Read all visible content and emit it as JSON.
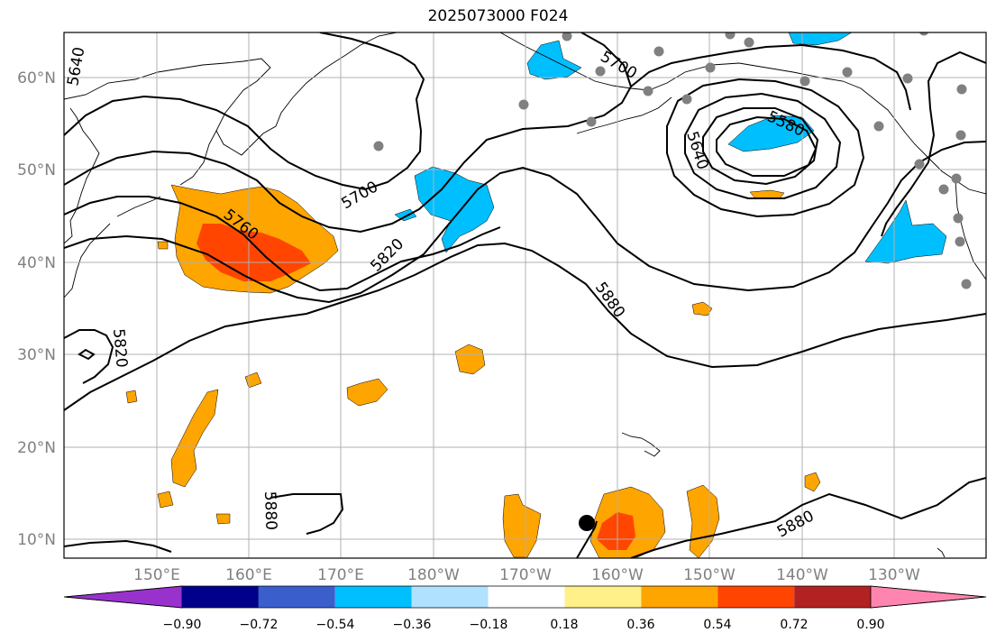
{
  "title": "2025073000 F024",
  "map": {
    "lat_labels": [
      "60°N",
      "50°N",
      "40°N",
      "30°N",
      "20°N",
      "10°N"
    ],
    "lon_labels": [
      "150°E",
      "160°E",
      "170°E",
      "180°W",
      "170°W",
      "160°W",
      "150°W",
      "140°W",
      "130°W"
    ],
    "contour_labels": [
      "5640",
      "5700",
      "5580",
      "5640",
      "5760",
      "5700",
      "5820",
      "5880",
      "5820",
      "5880",
      "5880"
    ],
    "colors": {
      "orange": "#ffa500",
      "red_orange": "#ff4500",
      "sky": "#00bfff",
      "station": "#808080",
      "contour": "#000000",
      "grid": "#b0b0b0"
    }
  },
  "colorbar": {
    "colors": [
      "#9932cc",
      "#00008b",
      "#3a5fcd",
      "#00bfff",
      "#b0e2ff",
      "#ffffff",
      "#fff08a",
      "#ffa500",
      "#ff4500",
      "#b22222",
      "#ff85b0"
    ],
    "tick_labels": [
      "−0.90",
      "−0.72",
      "−0.54",
      "−0.36",
      "−0.18",
      "0.18",
      "0.36",
      "0.54",
      "0.72",
      "0.90"
    ]
  }
}
